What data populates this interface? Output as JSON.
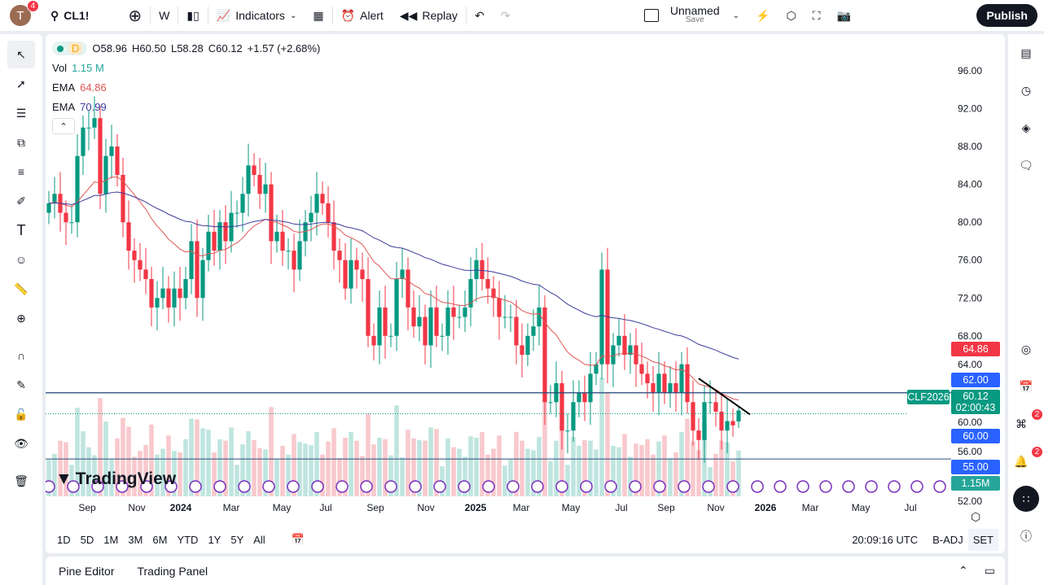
{
  "topbar": {
    "avatar_letter": "T",
    "avatar_badge": "4",
    "symbol": "CL1!",
    "interval": "W",
    "indicators": "Indicators",
    "alert": "Alert",
    "replay": "Replay",
    "layout_name": "Unnamed",
    "layout_save": "Save",
    "publish": "Publish"
  },
  "legend": {
    "interval_badge": "D",
    "open": "O58.96",
    "high": "H60.50",
    "low": "L58.28",
    "close": "C60.12",
    "change": "+1.57 (+2.68%)",
    "vol_label": "Vol",
    "vol_value": "1.15 M",
    "ema1_label": "EMA",
    "ema1_value": "64.86",
    "ema2_label": "EMA",
    "ema2_value": "70.99"
  },
  "price_labels": {
    "ema1": "64.86",
    "line62": "62.00",
    "contract": "CLF2026",
    "last": "60.12",
    "countdown": "02:00:43",
    "line60": "60.00",
    "volume": "1.15M",
    "line55": "55.00"
  },
  "colors": {
    "up": "#089981",
    "down": "#f23645",
    "ema1": "#e05555",
    "ema2": "#3c3c9c",
    "hline": "#2962ff",
    "event": "#7b2fbe"
  },
  "right_sidebar": {
    "feed_badge": "2",
    "alerts_badge": "2"
  },
  "range_bar": {
    "ranges": [
      "1D",
      "5D",
      "1M",
      "3M",
      "6M",
      "YTD",
      "1Y",
      "5Y",
      "All"
    ],
    "clock": "20:09:16 UTC",
    "adj": "B-ADJ",
    "session": "SET"
  },
  "bottom_panel": {
    "tab1": "Pine Editor",
    "tab2": "Trading Panel"
  },
  "watermark": "TradingView",
  "chart_data": {
    "type": "candlestick",
    "symbol": "CL1!",
    "interval": "W",
    "y_ticks": [
      96,
      92,
      88,
      84,
      80,
      76,
      72,
      68,
      64,
      60,
      56,
      52
    ],
    "y_tick_labels": [
      "96.00",
      "92.00",
      "88.00",
      "84.00",
      "80.00",
      "76.00",
      "72.00",
      "68.00",
      "64.00",
      "60.00",
      "56.00",
      "52.00"
    ],
    "ylim": [
      51,
      98
    ],
    "x_tick_labels": [
      "Sep",
      "Nov",
      "2024",
      "Mar",
      "May",
      "Jul",
      "Sep",
      "Nov",
      "2025",
      "Mar",
      "May",
      "Jul",
      "Sep",
      "Nov",
      "2026",
      "Mar",
      "May",
      "Jul"
    ],
    "first_week": "2023-07-31",
    "weekly_closes": [
      82,
      83,
      81,
      80,
      80,
      87,
      90,
      90,
      91,
      83,
      87,
      88,
      85,
      80,
      77,
      76,
      75,
      74,
      71,
      72,
      73,
      71,
      73,
      72,
      74,
      78,
      72,
      76,
      79,
      77,
      80,
      78,
      81,
      81,
      83,
      86,
      85,
      83,
      84,
      78,
      79,
      77,
      77,
      75,
      78,
      80,
      81,
      83,
      82,
      80,
      77,
      76,
      73,
      76,
      75,
      74,
      68,
      67,
      71,
      68,
      68,
      74,
      75,
      71,
      69,
      70,
      67,
      71,
      68,
      68,
      71,
      70,
      70,
      71,
      74,
      76,
      74,
      73,
      72,
      70,
      70,
      70,
      67,
      66,
      68,
      69,
      71,
      61,
      61,
      63,
      58,
      58,
      61,
      62,
      61,
      64,
      65,
      75,
      65,
      67,
      68,
      66,
      67,
      65,
      64,
      63,
      62,
      64,
      62,
      63,
      62,
      65,
      61,
      58,
      57,
      61,
      61,
      60,
      58,
      59,
      58.55,
      60.12
    ],
    "last_bar": {
      "open": 58.96,
      "high": 60.5,
      "low": 58.28,
      "close": 60.12
    },
    "ema_last": [
      64.86,
      70.99
    ],
    "horizontal_lines": [
      62.0,
      60.0,
      55.0
    ],
    "trendline": [
      {
        "date": "2025-10-06",
        "price": 63.5
      },
      {
        "date": "2025-12-08",
        "price": 59.7
      }
    ]
  }
}
